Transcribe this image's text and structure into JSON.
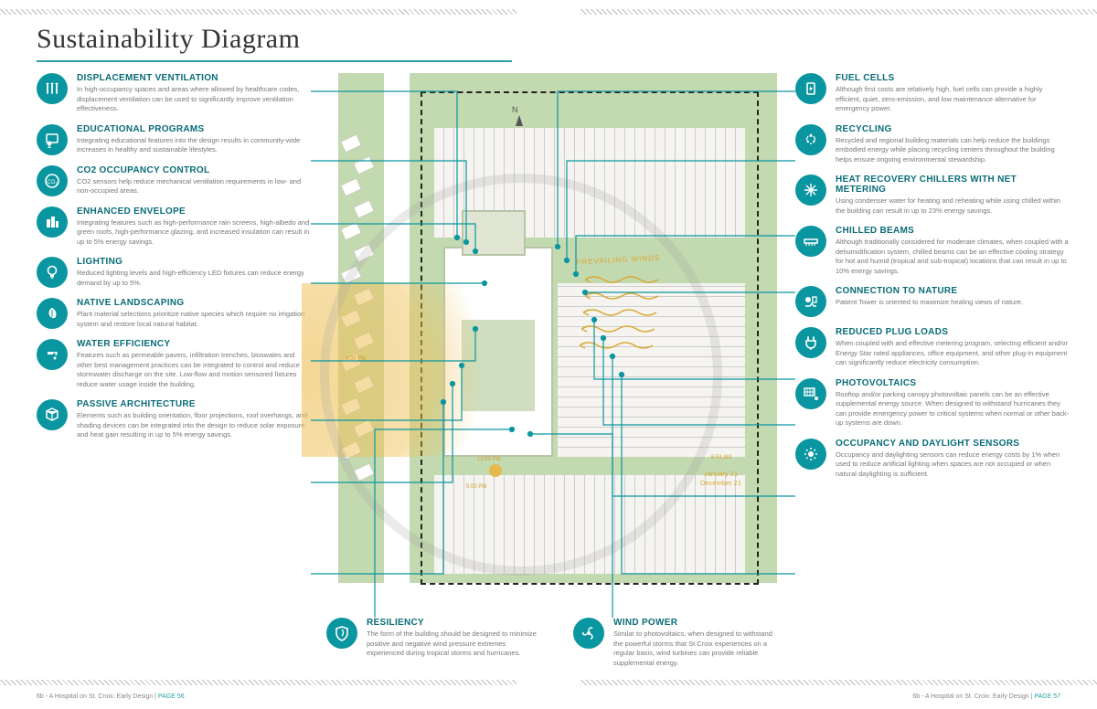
{
  "title": "Sustainability Diagram",
  "colors": {
    "accent": "#0a96a0",
    "accentDark": "#0a6c78",
    "bodyText": "#777777",
    "titleText": "#333333",
    "grass": "#c3d9b0",
    "sun": "#e6b94c",
    "sunpath": "rgba(238,194,92,0.6)"
  },
  "fontSizes": {
    "title": 30,
    "itemTitle": 10,
    "itemDesc": 7.5,
    "footer": 7
  },
  "left": [
    {
      "icon": "vent",
      "title": "DISPLACEMENT VENTILATION",
      "desc": "In high-occupancy spaces and areas where allowed by healthcare codes, displacement ventilation can be used to significantly improve ventilation effectiveness."
    },
    {
      "icon": "edu",
      "title": "EDUCATIONAL PROGRAMS",
      "desc": "Integrating educational features into the design results in community-wide increases in healthy and sustainable lifestyles."
    },
    {
      "icon": "co2",
      "title": "CO2 OCCUPANCY CONTROL",
      "desc": "CO2 sensors help reduce mechanical ventilation requirements in low- and non-occupied areas."
    },
    {
      "icon": "env",
      "title": "ENHANCED ENVELOPE",
      "desc": "Integrating features such as high-performance rain screens, high-albedo and green roofs, high-performance glazing, and increased insulation can result in up to 5% energy savings."
    },
    {
      "icon": "light",
      "title": "LIGHTING",
      "desc": "Reduced lighting levels and high-efficiency LED fixtures can reduce energy demand by up to 5%."
    },
    {
      "icon": "leaf",
      "title": "NATIVE LANDSCAPING",
      "desc": "Plant material selections prioritize native species which require no irrigation system and restore local natural habitat."
    },
    {
      "icon": "water",
      "title": "WATER EFFICIENCY",
      "desc": "Features such as permeable pavers, infiltration trenches, bioswales and other best management practices can be integrated to control and reduce stormwater discharge on the site. Low-flow and motion sensored fixtures reduce water usage inside the building."
    },
    {
      "icon": "cube",
      "title": "PASSIVE ARCHITECTURE",
      "desc": "Elements such as building orientation, floor projections, roof overhangs, and shading devices can be integrated into the design to reduce solar exposure and heat gain resulting in up to 5% energy savings."
    }
  ],
  "right": [
    {
      "icon": "fuel",
      "title": "FUEL CELLS",
      "desc": "Although first costs are relatively high, fuel cells can provide a highly efficient, quiet, zero-emission, and low maintenance alternative for emergency power."
    },
    {
      "icon": "recycle",
      "title": "RECYCLING",
      "desc": "Recycled and regional building materials can help reduce the buildings embodied energy while placing recycling centers throughout the building helps ensure ongoing environmental stewardship."
    },
    {
      "icon": "snow",
      "title": "HEAT RECOVERY CHILLERS WITH NET METERING",
      "desc": "Using condenser water for heating and reheating while using chilled within the building can result in up to 23% energy savings."
    },
    {
      "icon": "beam",
      "title": "CHILLED BEAMS",
      "desc": "Although traditionally considered for moderate climates, when coupled with a dehumidification system, chilled beams can be an effective cooling strategy for hot and humid (tropical and sub-tropical) locations that can result in up to 10% energy savings."
    },
    {
      "icon": "nature",
      "title": "CONNECTION TO NATURE",
      "desc": "Patient Tower is oriented to maximize healing views of nature."
    },
    {
      "icon": "plug",
      "title": "REDUCED PLUG LOADS",
      "desc": "When coupled with and effective metering program, selecting efficient and/or Energy Star rated appliances, office equipment, and other plug-in equipment can significantly reduce electricity consumption."
    },
    {
      "icon": "pv",
      "title": "PHOTOVOLTAICS",
      "desc": "Rooftop and/or parking canopy photovoltaic panels can be an effective supplemental energy source. When designed to withstand hurricanes they can provide emergency power to critical systems when normal or other back-up systems are down."
    },
    {
      "icon": "sensor",
      "title": "OCCUPANCY AND DAYLIGHT SENSORS",
      "desc": "Occupancy and daylighting sensors can reduce energy costs by 1% when used to reduce artificial lighting when spaces are not occupied or when natural daylighting is sufficient."
    }
  ],
  "bottom": [
    {
      "icon": "shield",
      "title": "RESILIENCY",
      "desc": "The form of the building should be designed to minimize positive and negative wind pressure extremes experienced during tropical storms and hurricanes."
    },
    {
      "icon": "wind",
      "title": "WIND POWER",
      "desc": "Similar to photovoltaics, when designed to withstand the powerful storms that St Croix experiences on a regular basis, wind turbines can provide reliable supplemental energy."
    }
  ],
  "plan": {
    "compass": "N",
    "prevailingWinds": "PREVAILING WINDS",
    "times": [
      "8:00 PM",
      "12:00 PM",
      "5:00 PM",
      "6:53 AM"
    ],
    "dates": [
      "January 21",
      "December 21"
    ]
  },
  "footer": {
    "text": "6b - A Hospital on St. Croix: Early Design",
    "pageL": "PAGE 56",
    "pageR": "PAGE 57"
  },
  "icons": {
    "vent": "<path d='M4 4v10M9 4v10M14 4v10' stroke-width='1.8' stroke-linecap='round'/><path d='M3 4c0-1 2-1 2 0M8 4c0-1 2-1 2 0M13 4c0-1 2-1 2 0' stroke-width='1.3' fill='none'/>",
    "edu": "<rect x='3' y='3' width='12' height='9' rx='1' fill='none' stroke-width='1.5'/><circle cx='6' cy='13' r='2'/><path d='M6 15v3M4 18h4' stroke-width='1.3'/>",
    "co2": "<circle cx='9' cy='9' r='7' fill='none' stroke-width='1.6'/><text x='9' y='12' font-size='6' text-anchor='middle' fill='#fff' stroke='none'>CO₂</text>",
    "env": "<rect x='3' y='6' width='4' height='9' fill='#fff' stroke='none'/><rect x='8' y='3' width='4' height='12' fill='#fff' stroke='none'/><rect x='13' y='8' width='3' height='7' fill='#fff' stroke='none'/>",
    "light": "<circle cx='9' cy='7' r='4.5' fill='none' stroke-width='1.6'/><path d='M7 12h4v2H7z' fill='#fff' stroke='none'/><path d='M7.5 15h3' stroke-width='1.3'/>",
    "leaf": "<path d='M9 3c4 2 6 7 3 11-4 1-8-3-6-8 1-2 2-3 3-3z' fill='#fff' stroke='none'/><path d='M9 5v8' stroke='#0a96a0' stroke-width='1'/>",
    "water": "<path d='M4 6h6v3H4z' fill='#fff' stroke='none'/><path d='M10 7h4l-1 3' fill='none' stroke-width='1.6'/><circle cx='12' cy='13' r='1.5' fill='#fff' stroke='none'/>",
    "cube": "<path d='M9 2l6 3v7l-6 3-6-3V5z' fill='none' stroke-width='1.5'/><path d='M3 5l6 3 6-3M9 8v7' stroke-width='1.2'/>",
    "fuel": "<rect x='5' y='3' width='8' height='12' rx='1' fill='none' stroke-width='1.6'/><path d='M9 6l-2 4h2l-1 3 3-5h-2z' fill='#fff' stroke='none'/>",
    "recycle": "<path d='M9 2l2 3-2 1-2-1zM14 10l-2 3-1-2 1-2zM4 10l2 3 1-2-1-2z' fill='#fff' stroke='none'/><path d='M6 5l-2 4M12 5l2 4M9 14v-2' stroke-width='1.3'/>",
    "snow": "<path d='M9 2v14M2 9h14M4 4l10 10M14 4L4 14' stroke-width='1.4'/>",
    "beam": "<rect x='2' y='7' width='14' height='4' fill='none' stroke-width='1.5'/><path d='M4 11v3M7 11v3M10 11v3M13 11v3' stroke-width='1.2'/>",
    "nature": "<path d='M3 14h5l2-3 2 3h3' fill='none' stroke-width='1.5'/><circle cx='6' cy='7' r='3' fill='#fff' stroke='none'/><rect x='11' y='4' width='4' height='6' fill='none' stroke-width='1.3'/>",
    "plug": "<path d='M6 3v4M12 3v4' stroke-width='1.8' stroke-linecap='round'/><path d='M4 7h10v3a5 5 0 01-10 0z' fill='none' stroke-width='1.6'/><path d='M9 14v3' stroke-width='1.5'/>",
    "pv": "<rect x='2' y='3' width='11' height='8' fill='none' stroke-width='1.4'/><path d='M5 3v8M8 3v8M11 3v8M2 7h11' stroke-width='0.9'/><circle cx='15' cy='14' r='2' fill='#fff' stroke='none'/>",
    "sensor": "<circle cx='9' cy='9' r='3' fill='#fff' stroke='none'/><path d='M9 2v2M9 14v2M2 9h2M14 9h2M4 4l1.5 1.5M14 4l-1.5 1.5M4 14l1.5-1.5M14 14l-1.5-1.5' stroke-width='1.5'/>",
    "shield": "<path d='M9 2l6 2v5c0 4-3 7-6 8-3-1-6-4-6-8V4z' fill='none' stroke-width='1.6'/><path d='M9 5c2 2 2 5 0 7' fill='none' stroke-width='1.3'/>",
    "wind": "<circle cx='9' cy='9' r='2' fill='#fff' stroke='none'/><path d='M9 7c0-4 3-5 4-3M11 10c3 2 2 5 0 5M7 10c-3 2-5 0-4-2' fill='none' stroke-width='1.5'/>"
  }
}
